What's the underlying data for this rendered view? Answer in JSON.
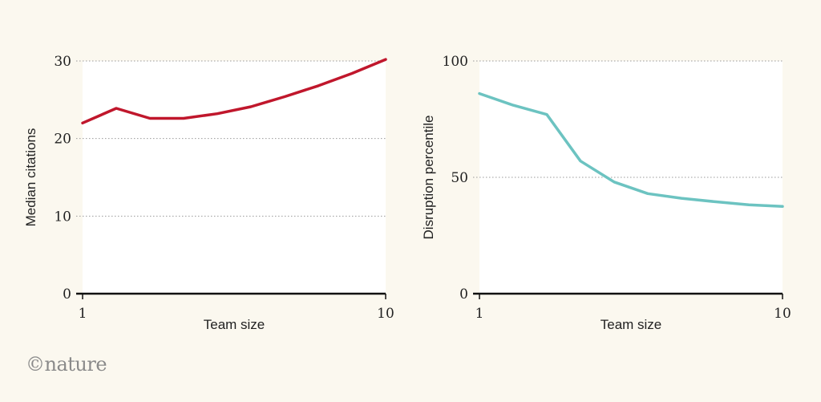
{
  "logo": {
    "copyright": "©",
    "brand": "nature"
  },
  "chart_data": [
    {
      "type": "line",
      "xlabel": "Team size",
      "ylabel": "Median citations",
      "xlim": [
        1,
        10
      ],
      "ylim": [
        0,
        30
      ],
      "x_tick_labels": [
        "1",
        "10"
      ],
      "y_tick_labels": [
        "0",
        "10",
        "20",
        "30"
      ],
      "grid": "horizontal dotted",
      "series": [
        {
          "color": "#c0172c",
          "x": [
            1,
            2,
            3,
            4,
            5,
            6,
            7,
            8,
            9,
            10
          ],
          "values": [
            22,
            23.9,
            22.6,
            22.6,
            23.2,
            24.1,
            25.4,
            26.8,
            28.4,
            30.2
          ]
        }
      ]
    },
    {
      "type": "line",
      "xlabel": "Team size",
      "ylabel": "Disruption percentile",
      "xlim": [
        1,
        10
      ],
      "ylim": [
        0,
        100
      ],
      "x_tick_labels": [
        "1",
        "10"
      ],
      "y_tick_labels": [
        "0",
        "50",
        "100"
      ],
      "grid": "horizontal dotted",
      "series": [
        {
          "color": "#6cc3c1",
          "x": [
            1,
            2,
            3,
            4,
            5,
            6,
            7,
            8,
            9,
            10
          ],
          "values": [
            86,
            81,
            77,
            57,
            48,
            43,
            41,
            39.5,
            38.2,
            37.5
          ]
        }
      ]
    }
  ]
}
